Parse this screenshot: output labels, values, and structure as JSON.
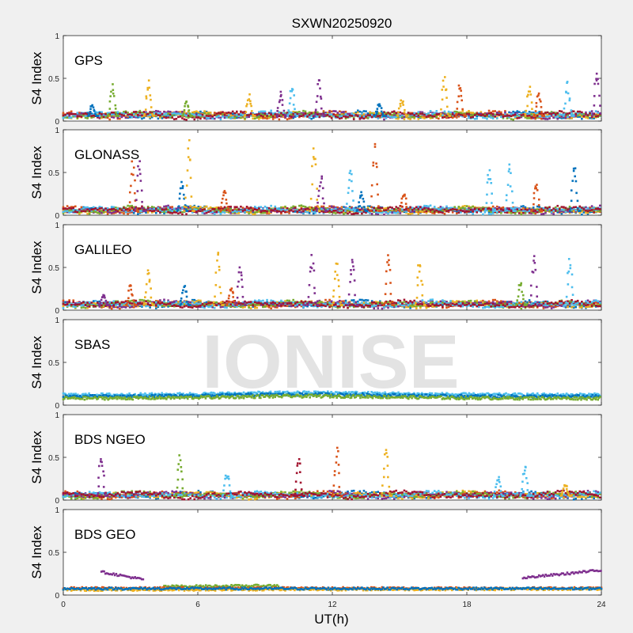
{
  "chart_data": {
    "type": "scatter",
    "title": "SXWN20250920",
    "xlabel": "UT(h)",
    "ylabel": "S4 Index",
    "xlim": [
      0,
      24
    ],
    "ylim": [
      0,
      1
    ],
    "x_ticks": [
      "0",
      "6",
      "12",
      "18",
      "24"
    ],
    "y_ticks": [
      "0",
      "0.5",
      "1"
    ],
    "watermark": "IONISE",
    "series_colors": [
      "#0072BD",
      "#D95319",
      "#EDB120",
      "#7E2F8E",
      "#77AC30",
      "#4DBEEE",
      "#A2142F"
    ],
    "panels": [
      {
        "label": "GPS",
        "baseline": 0.06,
        "peaks": [
          {
            "x": 1.4,
            "y": 0.2,
            "s": 0
          },
          {
            "x": 2.3,
            "y": 0.45,
            "s": 4
          },
          {
            "x": 3.9,
            "y": 0.53,
            "s": 2
          },
          {
            "x": 5.6,
            "y": 0.24,
            "s": 4
          },
          {
            "x": 8.4,
            "y": 0.33,
            "s": 2
          },
          {
            "x": 9.8,
            "y": 0.35,
            "s": 3
          },
          {
            "x": 10.3,
            "y": 0.47,
            "s": 5
          },
          {
            "x": 11.5,
            "y": 0.52,
            "s": 3
          },
          {
            "x": 14.2,
            "y": 0.22,
            "s": 0
          },
          {
            "x": 15.2,
            "y": 0.27,
            "s": 2
          },
          {
            "x": 17.1,
            "y": 0.55,
            "s": 2
          },
          {
            "x": 17.8,
            "y": 0.48,
            "s": 1
          },
          {
            "x": 20.9,
            "y": 0.43,
            "s": 2
          },
          {
            "x": 21.3,
            "y": 0.33,
            "s": 1
          },
          {
            "x": 22.6,
            "y": 0.47,
            "s": 5
          },
          {
            "x": 23.9,
            "y": 0.64,
            "s": 3
          }
        ]
      },
      {
        "label": "GLONASS",
        "baseline": 0.05,
        "peaks": [
          {
            "x": 3.2,
            "y": 0.66,
            "s": 1
          },
          {
            "x": 3.5,
            "y": 0.72,
            "s": 3
          },
          {
            "x": 5.4,
            "y": 0.4,
            "s": 0
          },
          {
            "x": 5.7,
            "y": 0.95,
            "s": 2
          },
          {
            "x": 7.3,
            "y": 0.3,
            "s": 1
          },
          {
            "x": 11.3,
            "y": 0.85,
            "s": 2
          },
          {
            "x": 11.6,
            "y": 0.5,
            "s": 3
          },
          {
            "x": 12.9,
            "y": 0.6,
            "s": 5
          },
          {
            "x": 13.4,
            "y": 0.3,
            "s": 0
          },
          {
            "x": 14.0,
            "y": 0.95,
            "s": 1
          },
          {
            "x": 15.3,
            "y": 0.3,
            "s": 1
          },
          {
            "x": 19.1,
            "y": 0.58,
            "s": 5
          },
          {
            "x": 20.0,
            "y": 0.65,
            "s": 5
          },
          {
            "x": 21.2,
            "y": 0.42,
            "s": 1
          },
          {
            "x": 22.9,
            "y": 0.63,
            "s": 0
          }
        ]
      },
      {
        "label": "GALILEO",
        "baseline": 0.06,
        "peaks": [
          {
            "x": 1.9,
            "y": 0.2,
            "s": 3
          },
          {
            "x": 3.1,
            "y": 0.32,
            "s": 1
          },
          {
            "x": 3.9,
            "y": 0.5,
            "s": 2
          },
          {
            "x": 5.5,
            "y": 0.3,
            "s": 0
          },
          {
            "x": 7.0,
            "y": 0.72,
            "s": 2
          },
          {
            "x": 7.6,
            "y": 0.27,
            "s": 1
          },
          {
            "x": 8.0,
            "y": 0.6,
            "s": 3
          },
          {
            "x": 11.2,
            "y": 0.68,
            "s": 3
          },
          {
            "x": 12.3,
            "y": 0.6,
            "s": 2
          },
          {
            "x": 13.0,
            "y": 0.72,
            "s": 3
          },
          {
            "x": 14.6,
            "y": 0.68,
            "s": 1
          },
          {
            "x": 16.0,
            "y": 0.6,
            "s": 2
          },
          {
            "x": 20.5,
            "y": 0.38,
            "s": 4
          },
          {
            "x": 21.1,
            "y": 0.68,
            "s": 3
          },
          {
            "x": 22.7,
            "y": 0.62,
            "s": 5
          }
        ]
      },
      {
        "label": "SBAS",
        "baseline": 0.12,
        "peaks": []
      },
      {
        "label": "BDS NGEO",
        "baseline": 0.05,
        "peaks": [
          {
            "x": 1.8,
            "y": 0.62,
            "s": 3
          },
          {
            "x": 5.3,
            "y": 0.57,
            "s": 4
          },
          {
            "x": 7.4,
            "y": 0.35,
            "s": 5
          },
          {
            "x": 10.6,
            "y": 0.5,
            "s": 6
          },
          {
            "x": 12.3,
            "y": 0.65,
            "s": 1
          },
          {
            "x": 14.5,
            "y": 0.62,
            "s": 2
          },
          {
            "x": 19.5,
            "y": 0.3,
            "s": 5
          },
          {
            "x": 20.7,
            "y": 0.47,
            "s": 5
          },
          {
            "x": 22.5,
            "y": 0.2,
            "s": 2
          }
        ]
      },
      {
        "label": "BDS GEO",
        "baseline": 0.08,
        "peaks": [],
        "tracks": [
          {
            "s": 3,
            "x0": 1.7,
            "x1": 3.6,
            "y0": 0.27,
            "y1": 0.18
          },
          {
            "s": 4,
            "x0": 4.5,
            "x1": 9.6,
            "y0": 0.1,
            "y1": 0.11
          },
          {
            "s": 3,
            "x0": 20.5,
            "x1": 24,
            "y0": 0.2,
            "y1": 0.29
          },
          {
            "s": 1,
            "x0": 0,
            "x1": 24,
            "y0": 0.08,
            "y1": 0.08
          },
          {
            "s": 2,
            "x0": 0,
            "x1": 24,
            "y0": 0.06,
            "y1": 0.07
          },
          {
            "s": 0,
            "x0": 0,
            "x1": 24,
            "y0": 0.075,
            "y1": 0.075
          }
        ]
      }
    ]
  }
}
